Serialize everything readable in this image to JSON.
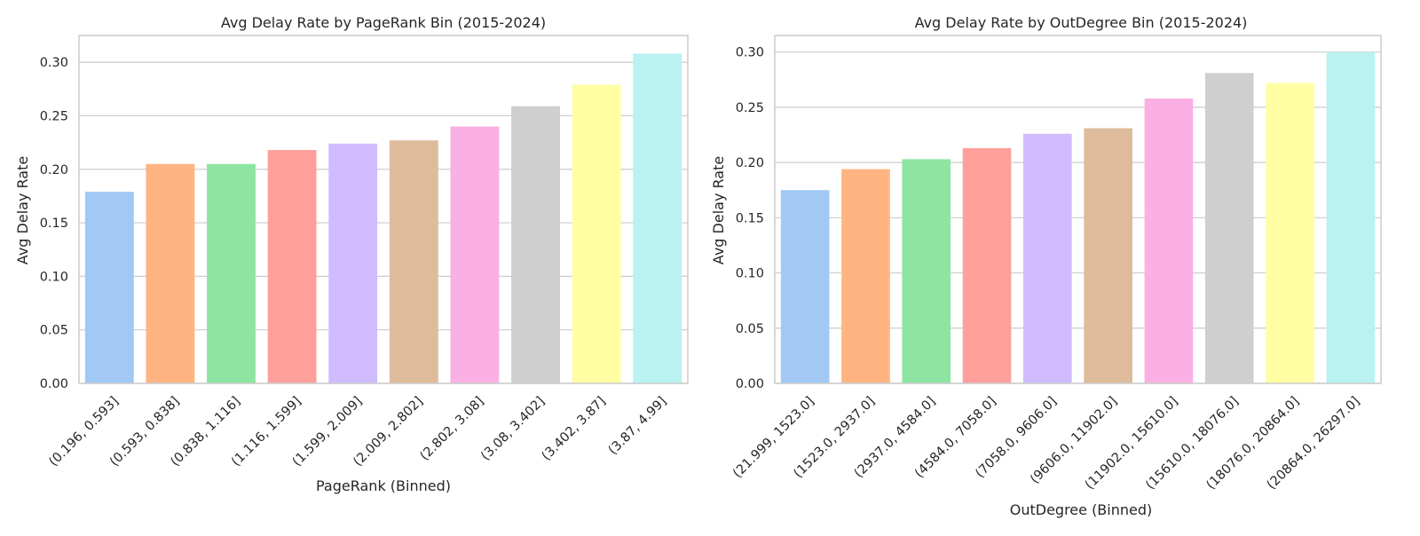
{
  "chart_data": [
    {
      "type": "bar",
      "title": "Avg Delay Rate by PageRank Bin (2015-2024)",
      "xlabel": "PageRank (Binned)",
      "ylabel": "Avg Delay Rate",
      "categories": [
        "(0.196, 0.593]",
        "(0.593, 0.838]",
        "(0.838, 1.116]",
        "(1.116, 1.599]",
        "(1.599, 2.009]",
        "(2.009, 2.802]",
        "(2.802, 3.08]",
        "(3.08, 3.402]",
        "(3.402, 3.87]",
        "(3.87, 4.99]"
      ],
      "values": [
        0.179,
        0.205,
        0.205,
        0.218,
        0.224,
        0.227,
        0.24,
        0.259,
        0.279,
        0.308
      ],
      "ylim": [
        0,
        0.325
      ],
      "yticks": [
        0.0,
        0.05,
        0.1,
        0.15,
        0.2,
        0.25,
        0.3
      ],
      "yticklabels": [
        "0.00",
        "0.05",
        "0.10",
        "0.15",
        "0.20",
        "0.25",
        "0.30"
      ],
      "grid": true,
      "legend": false,
      "colors": [
        "#a1c9f4",
        "#ffb482",
        "#8de5a1",
        "#ff9f9b",
        "#d0bbff",
        "#debb9b",
        "#fab0e4",
        "#cfcfcf",
        "#fffea3",
        "#b9f2f0"
      ]
    },
    {
      "type": "bar",
      "title": "Avg Delay Rate by OutDegree Bin (2015-2024)",
      "xlabel": "OutDegree (Binned)",
      "ylabel": "Avg Delay Rate",
      "categories": [
        "(21.999, 1523.0]",
        "(1523.0, 2937.0]",
        "(2937.0, 4584.0]",
        "(4584.0, 7058.0]",
        "(7058.0, 9606.0]",
        "(9606.0, 11902.0]",
        "(11902.0, 15610.0]",
        "(15610.0, 18076.0]",
        "(18076.0, 20864.0]",
        "(20864.0, 26297.0]"
      ],
      "values": [
        0.175,
        0.194,
        0.203,
        0.213,
        0.226,
        0.231,
        0.258,
        0.281,
        0.272,
        0.3
      ],
      "ylim": [
        0,
        0.315
      ],
      "yticks": [
        0.0,
        0.05,
        0.1,
        0.15,
        0.2,
        0.25,
        0.3
      ],
      "yticklabels": [
        "0.00",
        "0.05",
        "0.10",
        "0.15",
        "0.20",
        "0.25",
        "0.30"
      ],
      "grid": true,
      "legend": false,
      "colors": [
        "#a1c9f4",
        "#ffb482",
        "#8de5a1",
        "#ff9f9b",
        "#d0bbff",
        "#debb9b",
        "#fab0e4",
        "#cfcfcf",
        "#fffea3",
        "#b9f2f0"
      ]
    }
  ]
}
